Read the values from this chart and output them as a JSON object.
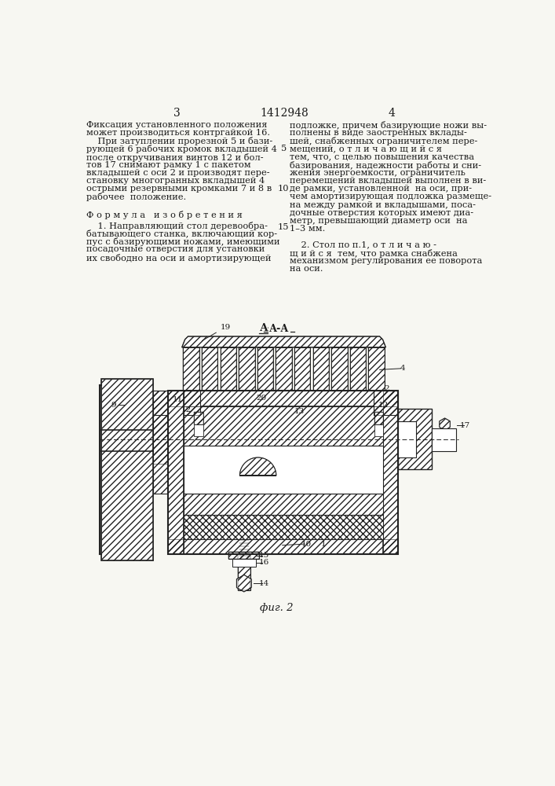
{
  "page_number_left": "3",
  "patent_number": "1412948",
  "page_number_right": "4",
  "background_color": "#f7f7f2",
  "text_color": "#1a1a1a",
  "line_color": "#222222",
  "col1_text": [
    "Фиксация установленного положения",
    "может производиться контргайкой 16.",
    "    При затуплении прорезной 5 и бази-",
    "рующей 6 рабочих кромок вкладышей 4",
    "после откручивания винтов 12 и бол-",
    "тов 17 снимают рамку 1 с пакетом",
    "вкладышей с оси 2 и производят пере-",
    "становку многогранных вкладышей 4",
    "острыми резервными кромками 7 и 8 в",
    "рабочее  положение."
  ],
  "formula_header": "Ф о р м у л а   и з о б р е т е н и я",
  "formula_text_left": [
    "    1. Направляющий стол деревообра-",
    "батывающего станка, включающий кор-",
    "пус с базирующими ножами, имеющими",
    "посадочные отверстия для установки",
    "их свободно на оси и амортизирующей"
  ],
  "col2_text_top": [
    "подложке, причем базирующие ножи вы-",
    "полнены в виде заостренных вклады-",
    "шей, снабженных ограничителем пере-",
    "мещений, о т л и ч а ю щ и й с я",
    "тем, что, с целью повышения качества",
    "базирования, надежности работы и сни-",
    "жения энергоемкости, ограничитель",
    "перемещений вкладышей выполнен в ви-",
    "де рамки, установленной  на оси, при-",
    "чем амортизирующая подложка размеще-",
    "на между рамкой и вкладышами, поса-",
    "дочные отверстия которых имеют диа-",
    "метр, превышающий диаметр оси  на",
    "1–3 мм."
  ],
  "col2_text_bot": [
    "    2. Стол по п.1, о т л и ч а ю -",
    "щ и й с я  тем, что рамка снабжена",
    "механизмом регулирования ее поворота",
    "на оси."
  ],
  "fig_label": "фиг. 2",
  "section_label": "А-А"
}
